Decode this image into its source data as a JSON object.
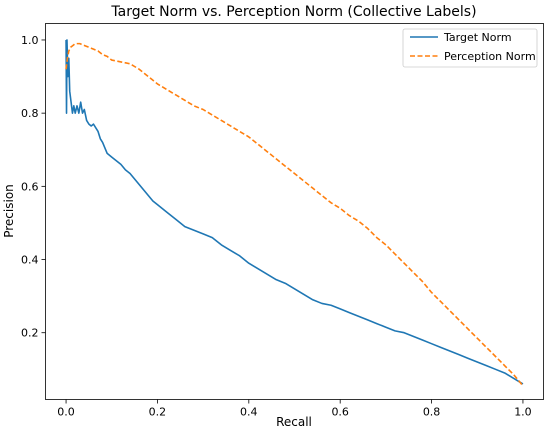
{
  "chart_data": {
    "type": "line",
    "title": "Target Norm vs. Perception Norm (Collective Labels)",
    "xlabel": "Recall",
    "ylabel": "Precision",
    "xlim": [
      -0.045,
      1.045
    ],
    "ylim": [
      0.0175,
      1.045
    ],
    "xticks": [
      0.0,
      0.2,
      0.4,
      0.6,
      0.8,
      1.0
    ],
    "yticks": [
      0.2,
      0.4,
      0.6,
      0.8,
      1.0
    ],
    "xtick_labels": [
      "0.0",
      "0.2",
      "0.4",
      "0.6",
      "0.8",
      "1.0"
    ],
    "ytick_labels": [
      "0.2",
      "0.4",
      "0.6",
      "0.8",
      "1.0"
    ],
    "grid": false,
    "legend": "top-right",
    "series": [
      {
        "name": "Target Norm",
        "color": "#1f77b4",
        "style": "solid",
        "points": [
          [
            0.0,
            1.0
          ],
          [
            0.001,
            0.8
          ],
          [
            0.002,
            1.0
          ],
          [
            0.004,
            0.9
          ],
          [
            0.006,
            0.95
          ],
          [
            0.008,
            0.86
          ],
          [
            0.011,
            0.83
          ],
          [
            0.014,
            0.8
          ],
          [
            0.017,
            0.82
          ],
          [
            0.02,
            0.8
          ],
          [
            0.024,
            0.82
          ],
          [
            0.028,
            0.8
          ],
          [
            0.032,
            0.83
          ],
          [
            0.036,
            0.8
          ],
          [
            0.04,
            0.81
          ],
          [
            0.045,
            0.78
          ],
          [
            0.05,
            0.77
          ],
          [
            0.055,
            0.765
          ],
          [
            0.06,
            0.77
          ],
          [
            0.065,
            0.76
          ],
          [
            0.07,
            0.75
          ],
          [
            0.075,
            0.73
          ],
          [
            0.08,
            0.72
          ],
          [
            0.085,
            0.705
          ],
          [
            0.09,
            0.69
          ],
          [
            0.1,
            0.68
          ],
          [
            0.11,
            0.67
          ],
          [
            0.12,
            0.66
          ],
          [
            0.13,
            0.645
          ],
          [
            0.14,
            0.635
          ],
          [
            0.15,
            0.62
          ],
          [
            0.16,
            0.605
          ],
          [
            0.17,
            0.59
          ],
          [
            0.18,
            0.575
          ],
          [
            0.19,
            0.56
          ],
          [
            0.2,
            0.55
          ],
          [
            0.22,
            0.53
          ],
          [
            0.24,
            0.51
          ],
          [
            0.26,
            0.49
          ],
          [
            0.28,
            0.48
          ],
          [
            0.3,
            0.47
          ],
          [
            0.32,
            0.46
          ],
          [
            0.34,
            0.44
          ],
          [
            0.36,
            0.425
          ],
          [
            0.38,
            0.41
          ],
          [
            0.4,
            0.39
          ],
          [
            0.42,
            0.375
          ],
          [
            0.44,
            0.36
          ],
          [
            0.46,
            0.345
          ],
          [
            0.48,
            0.335
          ],
          [
            0.5,
            0.32
          ],
          [
            0.52,
            0.305
          ],
          [
            0.54,
            0.29
          ],
          [
            0.56,
            0.28
          ],
          [
            0.58,
            0.275
          ],
          [
            0.6,
            0.265
          ],
          [
            0.62,
            0.255
          ],
          [
            0.64,
            0.245
          ],
          [
            0.66,
            0.235
          ],
          [
            0.68,
            0.225
          ],
          [
            0.7,
            0.215
          ],
          [
            0.72,
            0.205
          ],
          [
            0.74,
            0.2
          ],
          [
            0.76,
            0.19
          ],
          [
            0.78,
            0.18
          ],
          [
            0.8,
            0.17
          ],
          [
            0.82,
            0.16
          ],
          [
            0.84,
            0.15
          ],
          [
            0.86,
            0.14
          ],
          [
            0.88,
            0.13
          ],
          [
            0.9,
            0.12
          ],
          [
            0.92,
            0.11
          ],
          [
            0.94,
            0.1
          ],
          [
            0.96,
            0.09
          ],
          [
            0.98,
            0.075
          ],
          [
            1.0,
            0.06
          ]
        ]
      },
      {
        "name": "Perception Norm",
        "color": "#ff7f0e",
        "style": "dashed",
        "points": [
          [
            0.0,
            0.92
          ],
          [
            0.003,
            0.95
          ],
          [
            0.006,
            0.97
          ],
          [
            0.01,
            0.98
          ],
          [
            0.015,
            0.985
          ],
          [
            0.02,
            0.99
          ],
          [
            0.03,
            0.99
          ],
          [
            0.04,
            0.985
          ],
          [
            0.05,
            0.98
          ],
          [
            0.06,
            0.975
          ],
          [
            0.07,
            0.97
          ],
          [
            0.08,
            0.96
          ],
          [
            0.09,
            0.955
          ],
          [
            0.1,
            0.945
          ],
          [
            0.12,
            0.94
          ],
          [
            0.14,
            0.935
          ],
          [
            0.16,
            0.92
          ],
          [
            0.18,
            0.9
          ],
          [
            0.2,
            0.88
          ],
          [
            0.22,
            0.865
          ],
          [
            0.24,
            0.85
          ],
          [
            0.26,
            0.835
          ],
          [
            0.28,
            0.82
          ],
          [
            0.3,
            0.81
          ],
          [
            0.32,
            0.795
          ],
          [
            0.34,
            0.78
          ],
          [
            0.36,
            0.765
          ],
          [
            0.38,
            0.75
          ],
          [
            0.4,
            0.735
          ],
          [
            0.42,
            0.715
          ],
          [
            0.44,
            0.695
          ],
          [
            0.46,
            0.675
          ],
          [
            0.48,
            0.655
          ],
          [
            0.5,
            0.635
          ],
          [
            0.52,
            0.615
          ],
          [
            0.54,
            0.595
          ],
          [
            0.56,
            0.575
          ],
          [
            0.58,
            0.555
          ],
          [
            0.6,
            0.54
          ],
          [
            0.62,
            0.52
          ],
          [
            0.64,
            0.505
          ],
          [
            0.66,
            0.485
          ],
          [
            0.68,
            0.46
          ],
          [
            0.7,
            0.44
          ],
          [
            0.72,
            0.415
          ],
          [
            0.74,
            0.39
          ],
          [
            0.76,
            0.365
          ],
          [
            0.78,
            0.34
          ],
          [
            0.8,
            0.31
          ],
          [
            0.82,
            0.285
          ],
          [
            0.84,
            0.26
          ],
          [
            0.86,
            0.235
          ],
          [
            0.88,
            0.21
          ],
          [
            0.9,
            0.185
          ],
          [
            0.92,
            0.16
          ],
          [
            0.94,
            0.135
          ],
          [
            0.96,
            0.11
          ],
          [
            0.98,
            0.085
          ],
          [
            0.99,
            0.07
          ],
          [
            1.0,
            0.055
          ]
        ]
      }
    ]
  }
}
